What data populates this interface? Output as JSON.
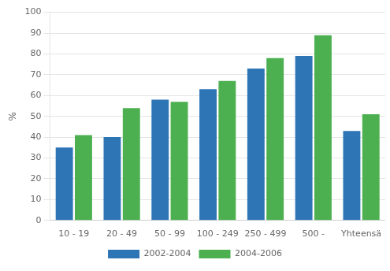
{
  "chart_data": {
    "type": "bar",
    "categories": [
      "10 - 19",
      "20 - 49",
      "50 - 99",
      "100 - 249",
      "250 - 499",
      "500 -",
      "Yhteensä"
    ],
    "series": [
      {
        "name": "2002-2004",
        "color": "#2E75B6",
        "values": [
          35,
          40,
          58,
          63,
          73,
          79,
          43
        ]
      },
      {
        "name": "2004-2006",
        "color": "#4CAF50",
        "values": [
          41,
          54,
          57,
          67,
          78,
          89,
          51
        ]
      }
    ],
    "ylabel": "%",
    "ylim": [
      0,
      100
    ],
    "yticks": [
      0,
      10,
      20,
      30,
      40,
      50,
      60,
      70,
      80,
      90,
      100
    ],
    "grid": true,
    "legend": "bottom"
  }
}
